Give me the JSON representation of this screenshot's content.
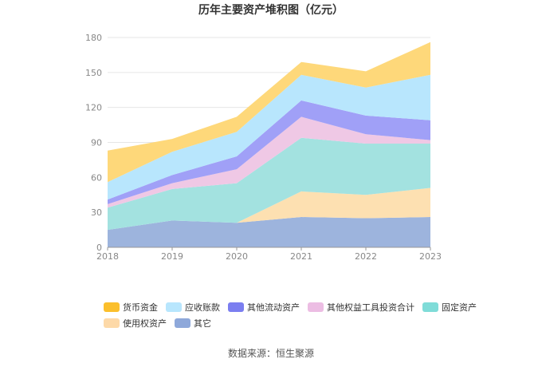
{
  "chart_data": {
    "type": "area",
    "stacked": true,
    "title": "历年主要资产堆积图（亿元）",
    "x": [
      "2018",
      "2019",
      "2020",
      "2021",
      "2022",
      "2023"
    ],
    "ylim": [
      0,
      180
    ],
    "yticks": [
      "0",
      "30",
      "60",
      "90",
      "120",
      "150",
      "180"
    ],
    "grid": true,
    "legend_position": "bottom",
    "series": [
      {
        "name": "其它",
        "color": "#9db4dd",
        "values": [
          15,
          23,
          21,
          26,
          25,
          26
        ]
      },
      {
        "name": "使用权资产",
        "color": "#fde0b1",
        "values": [
          0,
          0,
          0,
          22,
          20,
          25
        ]
      },
      {
        "name": "固定资产",
        "color": "#a3e2e0",
        "values": [
          19,
          27,
          34,
          46,
          44,
          38
        ]
      },
      {
        "name": "其他权益工具投资合计",
        "color": "#efc8e5",
        "values": [
          3,
          5,
          12,
          18,
          8,
          3
        ]
      },
      {
        "name": "其他流动资产",
        "color": "#a0a0f7",
        "values": [
          4,
          7,
          11,
          14,
          16,
          17
        ]
      },
      {
        "name": "应收账款",
        "color": "#b8e6fd",
        "values": [
          15,
          20,
          21,
          22,
          24,
          39
        ]
      },
      {
        "name": "货币资金",
        "color": "#fed87a",
        "values": [
          27,
          11,
          13,
          11,
          14,
          28
        ]
      }
    ],
    "legend": [
      {
        "name": "货币资金",
        "color": "#fbbf2c"
      },
      {
        "name": "应收账款",
        "color": "#b8e6fd"
      },
      {
        "name": "其他流动资产",
        "color": "#7b7ef0"
      },
      {
        "name": "其他权益工具投资合计",
        "color": "#ecbde3"
      },
      {
        "name": "固定资产",
        "color": "#7fdcd8"
      },
      {
        "name": "使用权资产",
        "color": "#fdd9a8"
      },
      {
        "name": "其它",
        "color": "#8ea8da"
      }
    ],
    "source": "数据来源：恒生聚源"
  }
}
